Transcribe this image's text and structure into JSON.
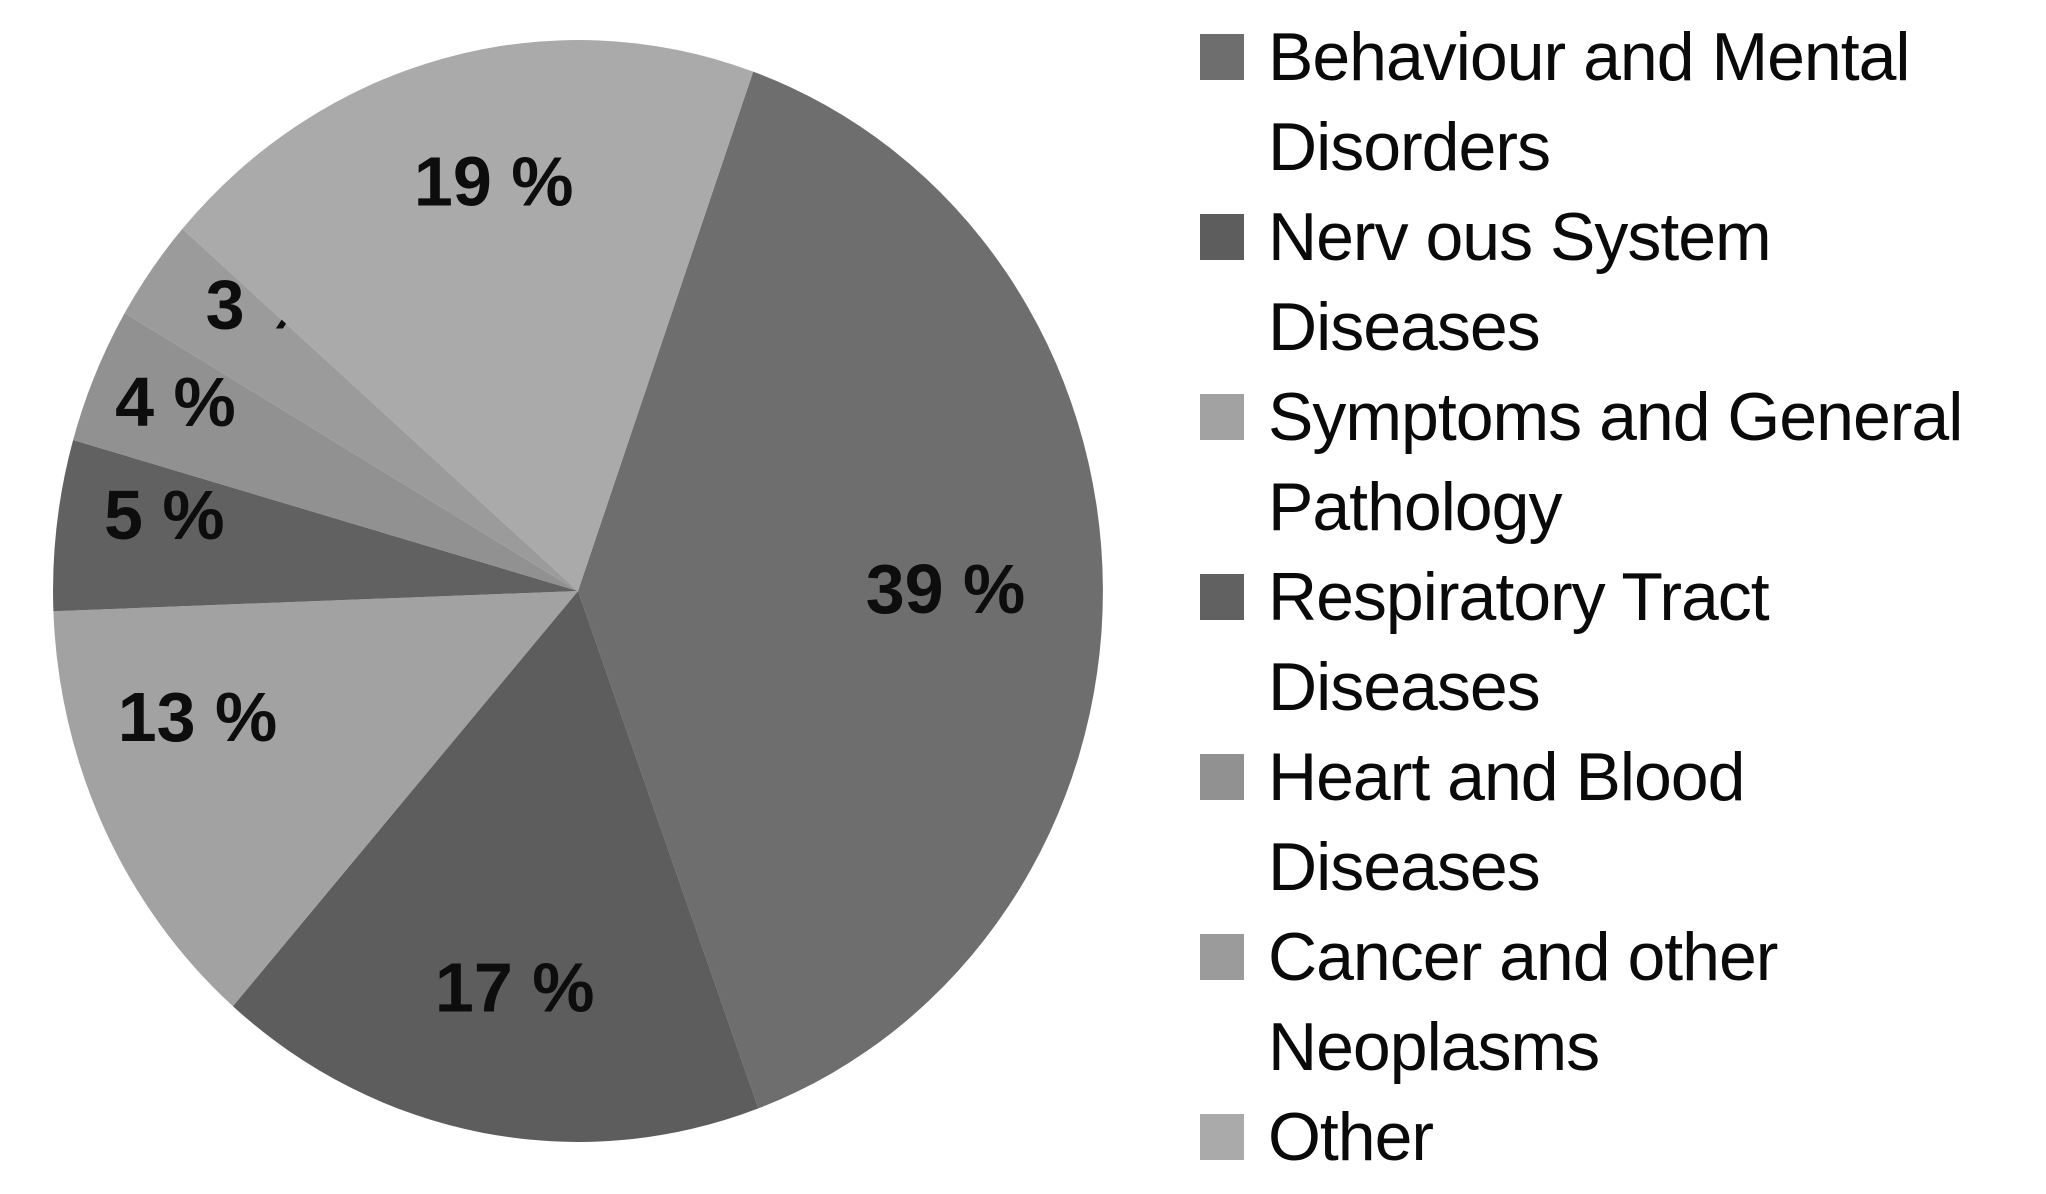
{
  "background_color": "#ffffff",
  "chart_data": {
    "type": "pie",
    "title": "",
    "direction": "clockwise",
    "start_angle_deg": 19.5,
    "legend_position": "right",
    "data_label_format": "percent",
    "label_color": "#0d0d0d",
    "slices": [
      {
        "label": "Behaviour and Mental Disorders",
        "value_pct": 39,
        "data_label": "39 %",
        "color": "#6e6e6e",
        "legend_lines": [
          "Behaviour and Mental",
          "Disorders"
        ]
      },
      {
        "label": "Nerv ous System Diseases",
        "value_pct": 17,
        "data_label": "17 %",
        "color": "#5d5d5d",
        "legend_lines": [
          "Nerv ous System",
          "Diseases"
        ]
      },
      {
        "label": "Symptoms and General Pathology",
        "value_pct": 13,
        "data_label": "13 %",
        "color": "#a2a2a2",
        "legend_lines": [
          "Symptoms and General",
          "Pathology"
        ]
      },
      {
        "label": "Respiratory Tract Diseases",
        "value_pct": 5,
        "data_label": "5 %",
        "color": "#616161",
        "legend_lines": [
          "Respiratory Tract",
          "Diseases"
        ]
      },
      {
        "label": "Heart and Blood Diseases",
        "value_pct": 4,
        "data_label": "4 %",
        "color": "#919191",
        "legend_lines": [
          "Heart and Blood",
          "Diseases"
        ]
      },
      {
        "label": "Cancer and other Neoplasms",
        "value_pct": 3,
        "data_label": "3 %",
        "color": "#9b9b9b",
        "legend_lines": [
          "Cancer and other",
          "Neoplasms"
        ]
      },
      {
        "label": "Other",
        "value_pct": 19,
        "data_label": "19 %",
        "color": "#aaaaaa",
        "legend_lines": [
          "Other"
        ]
      }
    ]
  }
}
